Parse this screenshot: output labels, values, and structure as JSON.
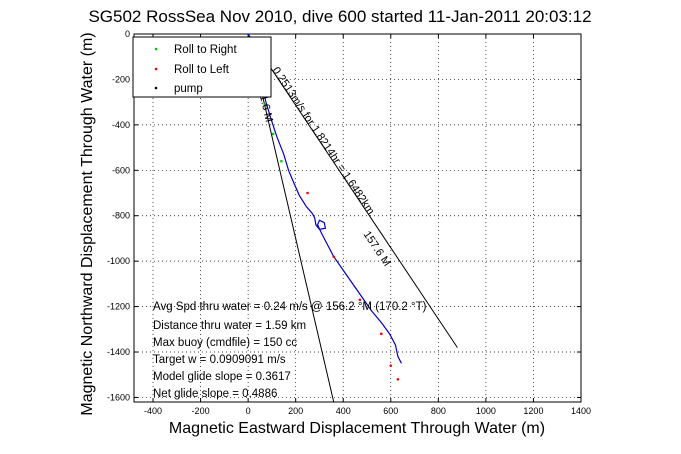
{
  "chart_data": {
    "type": "line",
    "title": "SG502 RossSea Nov 2010, dive 600 started 11-Jan-2011 20:03:12",
    "xlabel": "Magnetic Eastward Displacement Through Water (m)",
    "ylabel": "Magnetic Northward Displacement Through Water (m)",
    "xlim": [
      -480,
      1400
    ],
    "ylim": [
      -1620,
      0
    ],
    "grid": true,
    "legend_position": "top-left",
    "x_ticks": [
      "-400",
      "-200",
      "0",
      "200",
      "400",
      "600",
      "800",
      "1000",
      "1200",
      "1400"
    ],
    "y_ticks": [
      "0",
      "-200",
      "-400",
      "-600",
      "-800",
      "-1000",
      "-1200",
      "-1400",
      "-1600"
    ],
    "legend": [
      "Roll to Right",
      "Roll to Left",
      "pump"
    ],
    "series": [
      {
        "name": "Roll to Right",
        "color": "#00cc00",
        "values": [
          [
            10,
            -20
          ],
          [
            35,
            -120
          ],
          [
            70,
            -310
          ],
          [
            105,
            -440
          ],
          [
            140,
            -560
          ]
        ]
      },
      {
        "name": "Roll to Left",
        "color": "#ff0000",
        "values": [
          [
            20,
            -60
          ],
          [
            60,
            -240
          ],
          [
            250,
            -700
          ],
          [
            360,
            -980
          ],
          [
            470,
            -1170
          ],
          [
            560,
            -1320
          ],
          [
            600,
            -1460
          ],
          [
            630,
            -1520
          ]
        ]
      },
      {
        "name": "pump",
        "color": "#000000",
        "values": []
      }
    ],
    "track": {
      "color": "#0000cc",
      "values": [
        [
          0,
          0
        ],
        [
          15,
          -40
        ],
        [
          30,
          -100
        ],
        [
          45,
          -160
        ],
        [
          60,
          -230
        ],
        [
          75,
          -300
        ],
        [
          95,
          -370
        ],
        [
          120,
          -450
        ],
        [
          150,
          -530
        ],
        [
          170,
          -600
        ],
        [
          190,
          -650
        ],
        [
          215,
          -710
        ],
        [
          245,
          -760
        ],
        [
          270,
          -790
        ],
        [
          280,
          -810
        ],
        [
          285,
          -840
        ],
        [
          300,
          -860
        ],
        [
          325,
          -855
        ],
        [
          320,
          -830
        ],
        [
          300,
          -820
        ],
        [
          292,
          -840
        ],
        [
          310,
          -880
        ],
        [
          330,
          -920
        ],
        [
          360,
          -980
        ],
        [
          400,
          -1040
        ],
        [
          440,
          -1100
        ],
        [
          480,
          -1160
        ],
        [
          520,
          -1220
        ],
        [
          560,
          -1270
        ],
        [
          595,
          -1320
        ],
        [
          620,
          -1370
        ],
        [
          630,
          -1420
        ],
        [
          645,
          -1450
        ]
      ]
    },
    "reference_lines": [
      {
        "values": [
          [
            0,
            0
          ],
          [
            880,
            -1380
          ]
        ]
      },
      {
        "values": [
          [
            0,
            0
          ],
          [
            360,
            -1620
          ]
        ]
      }
    ],
    "line_annotations": [
      "0.2513m/s for 1.8214hr = 1.6482km",
      "157.6 M",
      "151.6 M"
    ],
    "stats": [
      "Avg Spd thru water = 0.24 m/s @ 156.2 °M (170.2 °T)",
      "Distance thru water = 1.59 km",
      "Max buoy (cmdfile) = 150 cc",
      "Target w = 0.0909091 m/s",
      "Model glide slope = 0.3617",
      "Net glide slope = 0.4886"
    ]
  }
}
